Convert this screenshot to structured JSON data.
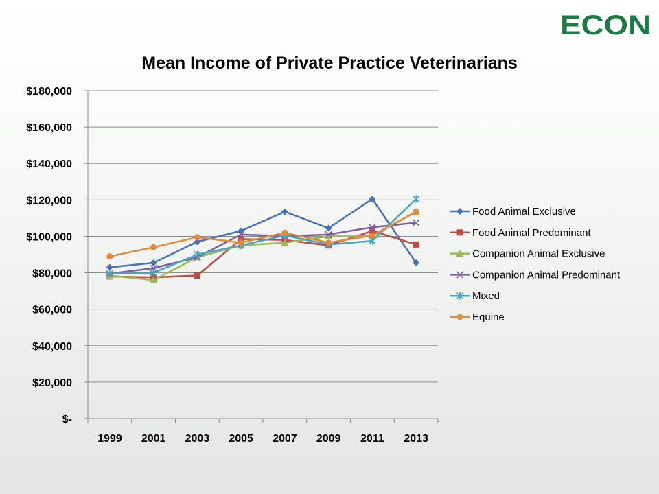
{
  "logo": {
    "text": "ECON"
  },
  "chart_data": {
    "type": "line",
    "title": "Mean Income of Private Practice Veterinarians",
    "xlabel": "",
    "ylabel": "",
    "categories": [
      "1999",
      "2001",
      "2003",
      "2005",
      "2007",
      "2009",
      "2011",
      "2013"
    ],
    "ylim": [
      0,
      180000
    ],
    "yticks": [
      0,
      20000,
      40000,
      60000,
      80000,
      100000,
      120000,
      140000,
      160000,
      180000
    ],
    "ytick_labels": [
      "$-",
      "$20,000",
      "$40,000",
      "$60,000",
      "$80,000",
      "$100,000",
      "$120,000",
      "$140,000",
      "$160,000",
      "$180,000"
    ],
    "grid": true,
    "legend_position": "right",
    "series": [
      {
        "name": "Food Animal Exclusive",
        "color": "#4a72b0",
        "marker": "diamond",
        "values": [
          83000,
          85500,
          97000,
          103000,
          113500,
          104500,
          120500,
          85500
        ]
      },
      {
        "name": "Food Animal Predominant",
        "color": "#be4b48",
        "marker": "square",
        "values": [
          78000,
          77500,
          78500,
          98500,
          98000,
          95000,
          103000,
          95500
        ]
      },
      {
        "name": "Companion Animal Exclusive",
        "color": "#98b955",
        "marker": "triangle",
        "values": [
          78500,
          76000,
          88500,
          95000,
          96500,
          100000,
          100000,
          113500
        ]
      },
      {
        "name": "Companion Animal Predominant",
        "color": "#7d5fa0",
        "marker": "x",
        "values": [
          79500,
          82500,
          88500,
          101000,
          100000,
          101000,
          105000,
          107500
        ]
      },
      {
        "name": "Mixed",
        "color": "#46a5c0",
        "marker": "star",
        "values": [
          79500,
          80000,
          90000,
          95000,
          100500,
          95500,
          97500,
          120500
        ]
      },
      {
        "name": "Equine",
        "color": "#e28a3b",
        "marker": "circle",
        "values": [
          89000,
          94000,
          99500,
          96500,
          102000,
          96500,
          100500,
          113500
        ]
      }
    ]
  }
}
